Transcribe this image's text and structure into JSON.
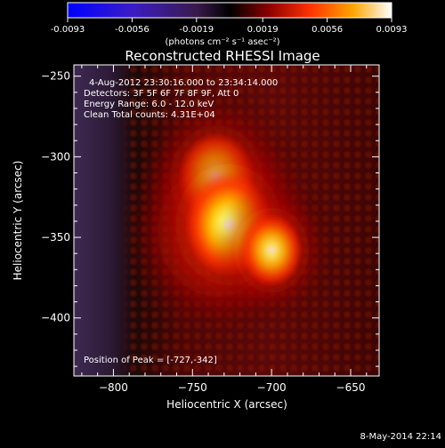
{
  "colorbar": {
    "tick_labels": [
      "-0.0093",
      "-0.0056",
      "-0.0019",
      "0.0019",
      "0.0056",
      "0.0093"
    ],
    "range": [
      -0.0093,
      0.0093
    ],
    "units_label": "(photons cm⁻² s⁻¹ asec⁻²)"
  },
  "chart_data": {
    "type": "heatmap",
    "title": "Reconstructed RHESSI Image",
    "xlabel": "Heliocentric X (arcsec)",
    "ylabel": "Heliocentric Y (arcsec)",
    "xlim": [
      -825,
      -632
    ],
    "ylim": [
      -436,
      -243
    ],
    "x_ticks": [
      -800,
      -750,
      -700,
      -650
    ],
    "y_ticks": [
      -250,
      -300,
      -350,
      -400
    ],
    "x_tick_labels": [
      "−800",
      "−750",
      "−700",
      "−650"
    ],
    "y_tick_labels": [
      "−250",
      "−300",
      "−350",
      "−400"
    ],
    "annotations": [
      "4-Aug-2012 23:30:16.000 to 23:34:14.000",
      "Detectors: 3F 5F 6F 7F 8F 9F, Att 0",
      "Energy Range: 6.0 - 12.0 keV",
      "Clean    Total counts: 4.31E+04"
    ],
    "peak_label": "Position of Peak = [-727,-342]",
    "peak_position": [
      -727,
      -342
    ],
    "sources": [
      {
        "x": -735,
        "y": -313,
        "relative_intensity": 0.8
      },
      {
        "x": -727,
        "y": -342,
        "relative_intensity": 1.0
      },
      {
        "x": -700,
        "y": -358,
        "relative_intensity": 0.55
      }
    ],
    "colormap": "dark-purple to black to red to orange to yellow to white"
  },
  "footer": {
    "date_label": "8-May-2014 22:14"
  }
}
